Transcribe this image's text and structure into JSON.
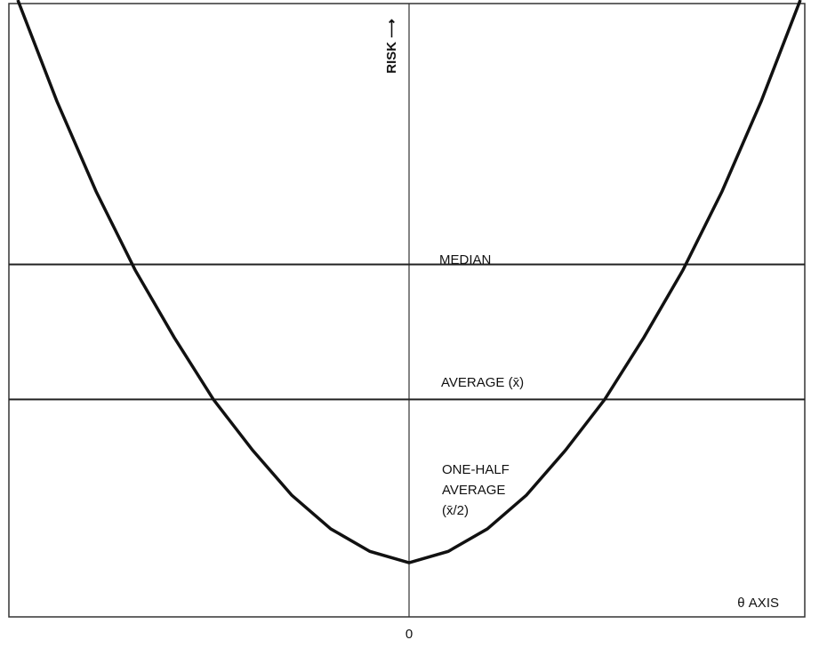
{
  "chart_data": {
    "type": "line",
    "title": "",
    "xlabel": "θ AXIS",
    "ylabel": "RISK ⟶",
    "x_tick_labels": [
      "0"
    ],
    "grid": false,
    "legend": "none",
    "series": [
      {
        "x": [
          -1.0,
          -0.9,
          -0.8,
          -0.7,
          -0.6,
          -0.5,
          -0.4,
          -0.3,
          -0.2,
          -0.1,
          0.0,
          0.1,
          0.2,
          0.3,
          0.4,
          0.5,
          0.6,
          0.7,
          0.8,
          0.9,
          1.0
        ],
        "y": [
          1.0,
          0.82,
          0.66,
          0.52,
          0.4,
          0.29,
          0.2,
          0.12,
          0.06,
          0.02,
          0.0,
          0.02,
          0.06,
          0.12,
          0.2,
          0.29,
          0.4,
          0.52,
          0.66,
          0.82,
          1.0
        ]
      }
    ],
    "reference_lines": [
      {
        "label": "MEDIAN",
        "y": 0.53
      },
      {
        "label": "AVERAGE (x̄)",
        "y": 0.29
      },
      {
        "label": "ONE-HALF AVERAGE (x̄/2)",
        "y": 0.145,
        "drawn": false,
        "label_lines": [
          "ONE-HALF",
          "AVERAGE",
          "(x̄/2)"
        ]
      }
    ],
    "colors": {
      "curve": "#111111",
      "lines": "#222222",
      "text": "#111111"
    }
  }
}
